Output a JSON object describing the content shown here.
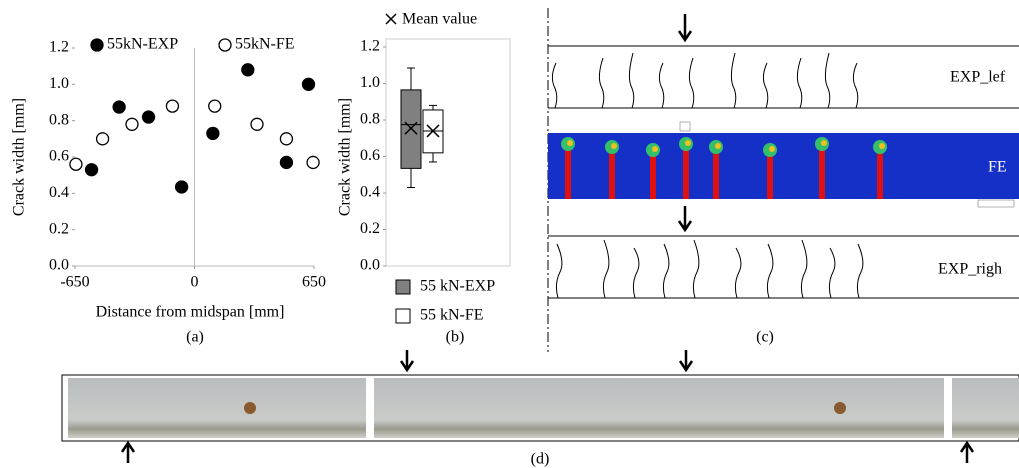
{
  "chart_data": [
    {
      "type": "scatter",
      "xlabel": "Distance from midspan [mm]",
      "ylabel": "Crack width [mm]",
      "caption": "(a)",
      "xlim": [
        -650,
        650
      ],
      "xticks": [
        -650,
        0,
        650
      ],
      "ylim": [
        0,
        1.2
      ],
      "yticks": [
        {
          "value": 0,
          "label": "0.0"
        },
        0.2,
        0.4,
        0.6,
        0.8,
        {
          "value": 1,
          "label": "1.0"
        },
        1.2
      ],
      "grid": false,
      "series": [
        {
          "name": "55kN-EXP",
          "color": "#000000",
          "x": [
            -560,
            -410,
            -250,
            -70,
            100,
            290,
            500,
            620
          ],
          "values": [
            0.53,
            0.875,
            0.82,
            0.435,
            0.73,
            1.08,
            0.57,
            1.0
          ]
        },
        {
          "name": "55kN-FE",
          "color": "#ffffff",
          "x": [
            -645,
            -500,
            -340,
            -120,
            110,
            340,
            500,
            645
          ],
          "values": [
            0.56,
            0.7,
            0.78,
            0.88,
            0.88,
            0.78,
            0.7,
            0.57
          ]
        }
      ]
    },
    {
      "type": "box",
      "ylabel": "Crack width [mm]",
      "caption": "(b)",
      "mean_label": "Mean value",
      "ylim": [
        0,
        1.2
      ],
      "yticks": [
        {
          "value": 0,
          "label": "0.0"
        },
        0.2,
        0.4,
        0.6,
        0.8,
        {
          "value": 1,
          "label": "1.0"
        },
        1.2
      ],
      "series": [
        {
          "name": "55 kN-EXP",
          "color": "#808080",
          "min": 0.43,
          "q1": 0.535,
          "median": 0.775,
          "q3": 0.965,
          "max": 1.085,
          "mean": 0.755
        },
        {
          "name": "55 kN-FE",
          "color": "#ffffff",
          "min": 0.57,
          "q1": 0.62,
          "median": 0.74,
          "q3": 0.855,
          "max": 0.88,
          "mean": 0.74
        }
      ]
    }
  ],
  "diagram": {
    "top_label": "EXP_lef",
    "middle_label": "FE",
    "bottom_label": "EXP_righ",
    "caption": "(c)"
  },
  "photo": {
    "caption": "(d)"
  }
}
